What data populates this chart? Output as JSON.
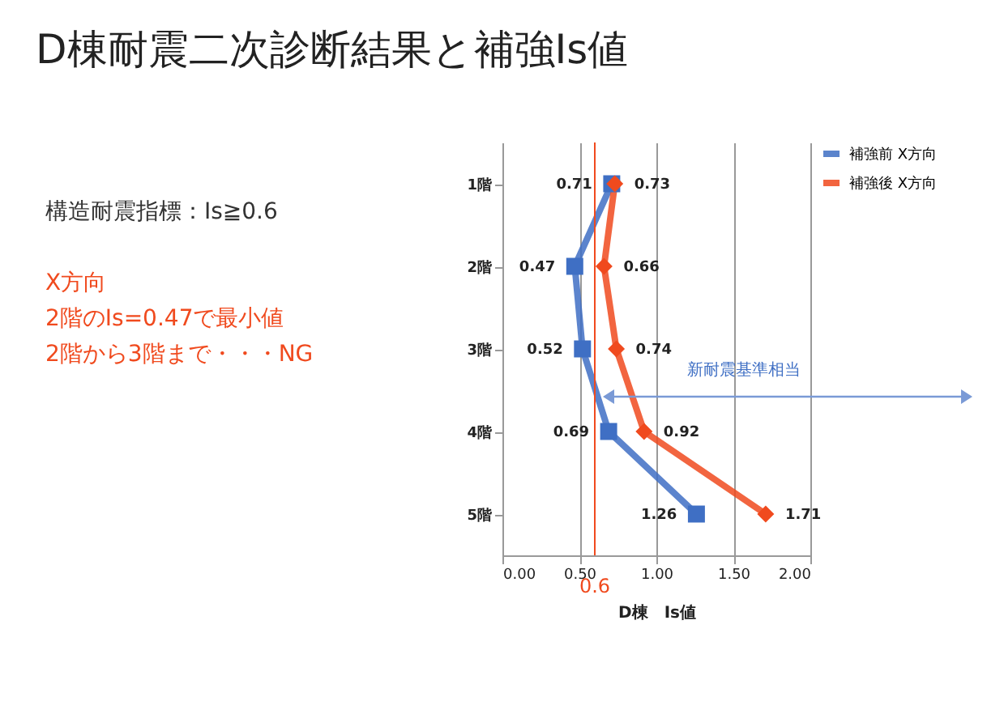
{
  "chart_data": {
    "type": "line",
    "title": "D棟耐震二次診断結果と補強Is値",
    "xlabel": "D棟　Is値",
    "categories": [
      "1階",
      "2階",
      "3階",
      "4階",
      "5階"
    ],
    "series": [
      {
        "name": "補強前 X方向",
        "color": "#3f6fc4",
        "marker": "square",
        "values": [
          0.71,
          0.47,
          0.52,
          0.69,
          1.26
        ]
      },
      {
        "name": "補強後 X方向",
        "color": "#f04a1e",
        "marker": "diamond",
        "values": [
          0.73,
          0.66,
          0.74,
          0.92,
          1.71
        ]
      }
    ],
    "orientation": "horizontal",
    "xlim": [
      0,
      2
    ],
    "xticks": [
      {
        "value": 0,
        "label": "0.00"
      },
      {
        "value": 0.5,
        "label": "0.50"
      },
      {
        "value": 1,
        "label": "1.00"
      },
      {
        "value": 1.5,
        "label": "1.50"
      },
      {
        "value": 2,
        "label": "2.00"
      }
    ],
    "ref_lines": [
      {
        "axis": "x",
        "value": 0.6,
        "label": "0.6",
        "color": "#f04a1e"
      }
    ],
    "annotations": [
      "構造耐震指標：Is≧0.6",
      "X方向",
      "2階のIs=0.47で最小値",
      "2階から3階まで・・・NG",
      "新耐震基準相当"
    ],
    "data_labels": true,
    "grid": "x",
    "legend": "right"
  }
}
